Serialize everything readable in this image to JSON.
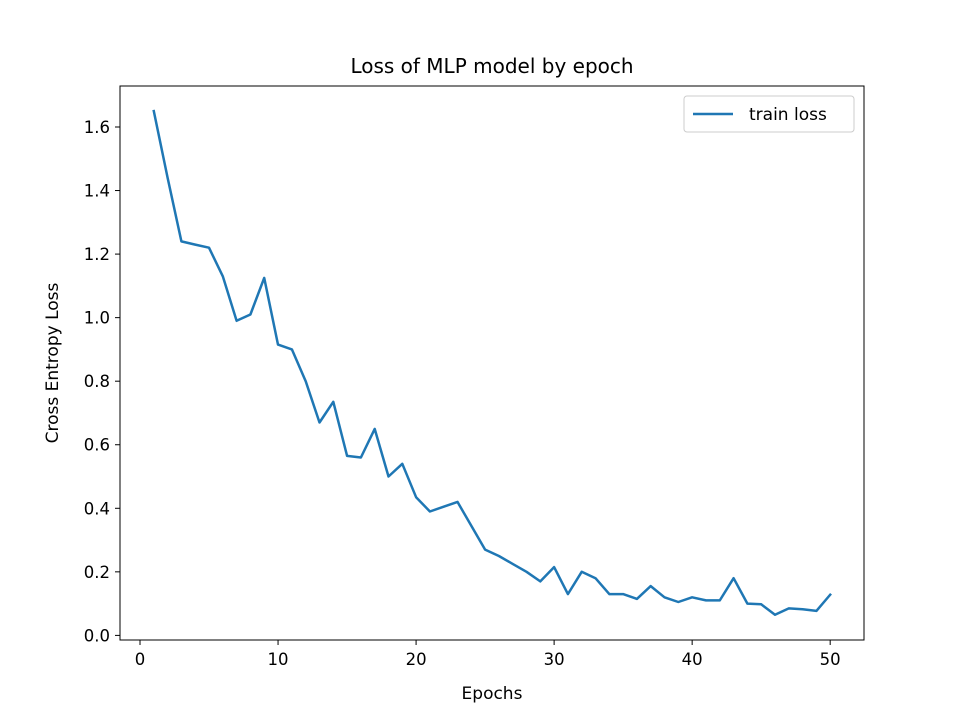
{
  "chart_data": {
    "type": "line",
    "title": "Loss of MLP model by epoch",
    "xlabel": "Epochs",
    "ylabel": "Cross Entropy Loss",
    "xlim": [
      -1.45,
      52.45
    ],
    "ylim": [
      -0.0145,
      1.729
    ],
    "xticks": [
      0,
      10,
      20,
      30,
      40,
      50
    ],
    "yticks": [
      0.0,
      0.2,
      0.4,
      0.6,
      0.8,
      1.0,
      1.2,
      1.4,
      1.6
    ],
    "xtick_labels": [
      "0",
      "10",
      "20",
      "30",
      "40",
      "50"
    ],
    "ytick_labels": [
      "0.0",
      "0.2",
      "0.4",
      "0.6",
      "0.8",
      "1.0",
      "1.2",
      "1.4",
      "1.6"
    ],
    "grid": false,
    "legend_position": "upper right",
    "series": [
      {
        "name": "train loss",
        "color": "#1f77b4",
        "x": [
          1,
          2,
          3,
          4,
          5,
          6,
          7,
          8,
          9,
          10,
          11,
          12,
          13,
          14,
          15,
          16,
          17,
          18,
          19,
          20,
          21,
          22,
          23,
          24,
          25,
          26,
          27,
          28,
          29,
          30,
          31,
          32,
          33,
          34,
          35,
          36,
          37,
          38,
          39,
          40,
          41,
          42,
          43,
          44,
          45,
          46,
          47,
          48,
          49,
          50
        ],
        "y": [
          1.65,
          1.44,
          1.24,
          1.23,
          1.22,
          1.13,
          0.99,
          1.01,
          1.125,
          0.915,
          0.9,
          0.8,
          0.67,
          0.735,
          0.565,
          0.56,
          0.65,
          0.5,
          0.54,
          0.435,
          0.39,
          0.405,
          0.42,
          0.345,
          0.27,
          0.25,
          0.225,
          0.2,
          0.17,
          0.215,
          0.13,
          0.2,
          0.18,
          0.13,
          0.13,
          0.115,
          0.155,
          0.12,
          0.105,
          0.12,
          0.11,
          0.11,
          0.18,
          0.1,
          0.098,
          0.065,
          0.085,
          0.082,
          0.077,
          0.128
        ]
      }
    ]
  }
}
